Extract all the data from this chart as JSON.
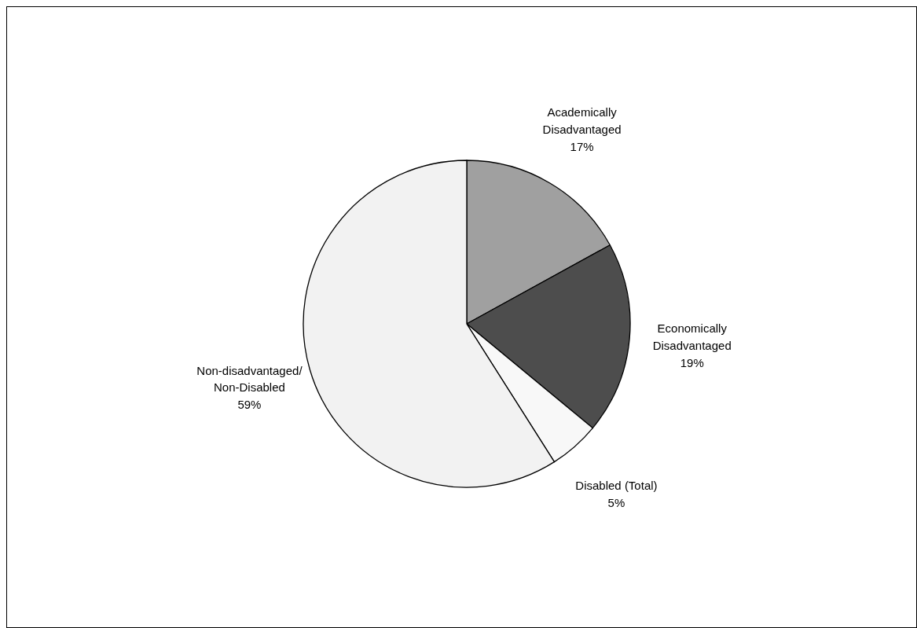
{
  "chart_data": {
    "type": "pie",
    "categories": [
      "Academically Disadvantaged",
      "Economically Disadvantaged",
      "Disabled (Total)",
      "Non-disadvantaged/Non-Disabled"
    ],
    "values": [
      17,
      19,
      5,
      59
    ],
    "value_labels": [
      "17%",
      "19%",
      "5%",
      "59%"
    ],
    "colors": [
      "#a0a0a0",
      "#4d4d4d",
      "#f8f8f8",
      "#f2f2f2"
    ],
    "legend": false
  }
}
